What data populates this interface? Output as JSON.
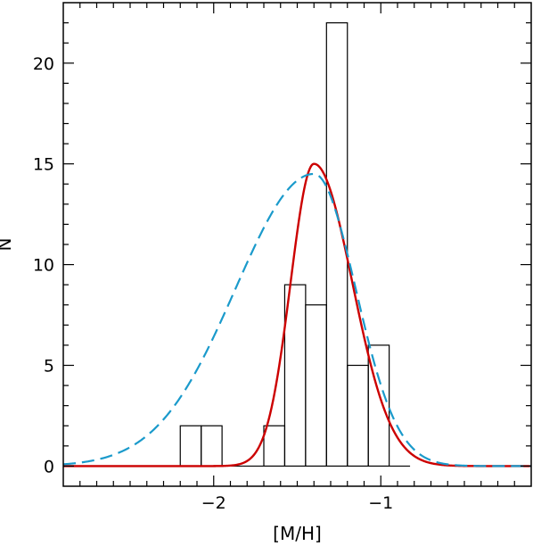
{
  "chart_data": {
    "type": "bar",
    "title": "",
    "xlabel": "[M/H]",
    "ylabel": "N",
    "xlim": [
      -2.9,
      -0.1
    ],
    "ylim": [
      -1.0,
      23.0
    ],
    "x_major_ticks": [
      -2,
      -1
    ],
    "x_tick_labels": [
      "−2",
      "−1"
    ],
    "y_major_ticks": [
      0,
      5,
      10,
      15,
      20
    ],
    "y_tick_labels": [
      "0",
      "5",
      "10",
      "15",
      "20"
    ],
    "histogram": {
      "bin_width": 0.125,
      "bins": [
        {
          "x0": -2.2,
          "x1": -2.075,
          "count": 2
        },
        {
          "x0": -2.075,
          "x1": -1.95,
          "count": 2
        },
        {
          "x0": -1.95,
          "x1": -1.825,
          "count": 0
        },
        {
          "x0": -1.825,
          "x1": -1.7,
          "count": 0
        },
        {
          "x0": -1.7,
          "x1": -1.575,
          "count": 2
        },
        {
          "x0": -1.575,
          "x1": -1.45,
          "count": 9
        },
        {
          "x0": -1.45,
          "x1": -1.325,
          "count": 8
        },
        {
          "x0": -1.325,
          "x1": -1.2,
          "count": 22
        },
        {
          "x0": -1.2,
          "x1": -1.075,
          "count": 5
        },
        {
          "x0": -1.075,
          "x1": -0.95,
          "count": 6
        },
        {
          "x0": -0.95,
          "x1": -0.825,
          "count": 0
        }
      ],
      "color": "#000000"
    },
    "curves": [
      {
        "style": "solid",
        "color": "#cc0000",
        "shape": "asymmetric-gaussian",
        "peak_x": -1.4,
        "peak_y": 15.0,
        "sigma_left": 0.14,
        "sigma_right": 0.23
      },
      {
        "style": "dashed",
        "color": "#1a9acb",
        "shape": "asymmetric-gaussian",
        "peak_x": -1.4,
        "peak_y": 14.5,
        "sigma_left": 0.47,
        "sigma_right": 0.25
      }
    ],
    "grid": false
  }
}
